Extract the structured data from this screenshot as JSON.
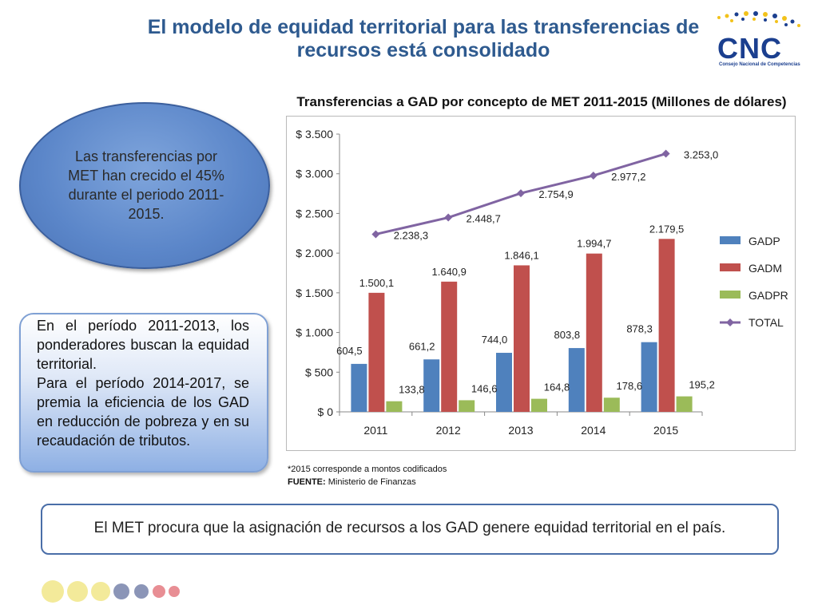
{
  "title": "El modelo de equidad territorial para las transferencias de recursos está consolidado",
  "logo": {
    "text": "CNC",
    "subtitle": "Consejo Nacional de Competencias",
    "colors": [
      "#1b3f8f",
      "#f2c21b"
    ]
  },
  "ellipse_text": "Las transferencias por MET han crecido el 45%  durante el periodo 2011-2015.",
  "box_paragraphs": [
    "En el período 2011-2013, los ponderadores buscan la equidad territorial.",
    "Para el período 2014-2017, se premia la eficiencia de los GAD en reducción de pobreza y en su recaudación de tributos."
  ],
  "note": "*2015 corresponde a montos codificados",
  "source_label": "FUENTE:",
  "source_value": " Ministerio de Finanzas",
  "bottom_text": "El MET procura que la asignación de recursos a los GAD genere equidad territorial en el país.",
  "colors": {
    "title": "#2e5a8f",
    "gadp": "#4f81bd",
    "gadm": "#c0504d",
    "gadpr": "#9bbb59",
    "total": "#8064a2"
  },
  "chart_data": {
    "type": "bar",
    "title": "Transferencias a GAD por concepto de MET 2011-2015 (Millones de dólares)",
    "categories": [
      "2011",
      "2012",
      "2013",
      "2014",
      "2015"
    ],
    "ylim": [
      0,
      3500
    ],
    "yticks": [
      0,
      500,
      1000,
      1500,
      2000,
      2500,
      3000,
      3500
    ],
    "ytick_labels": [
      "$ 0",
      "$ 500",
      "$ 1.000",
      "$ 1.500",
      "$ 2.000",
      "$ 2.500",
      "$ 3.000",
      "$ 3.500"
    ],
    "series": [
      {
        "name": "GADP",
        "kind": "bar",
        "color": "#4f81bd",
        "values": [
          604.5,
          661.2,
          744.0,
          803.8,
          878.3
        ],
        "labels": [
          "604,5",
          "661,2",
          "744,0",
          "803,8",
          "878,3"
        ]
      },
      {
        "name": "GADM",
        "kind": "bar",
        "color": "#c0504d",
        "values": [
          1500.1,
          1640.9,
          1846.1,
          1994.7,
          2179.5
        ],
        "labels": [
          "1.500,1",
          "1.640,9",
          "1.846,1",
          "1.994,7",
          "2.179,5"
        ]
      },
      {
        "name": "GADPR",
        "kind": "bar",
        "color": "#9bbb59",
        "values": [
          133.8,
          146.6,
          164.8,
          178.6,
          195.2
        ],
        "labels": [
          "133,8",
          "146,6",
          "164,8",
          "178,6",
          "195,2"
        ]
      },
      {
        "name": "TOTAL",
        "kind": "line",
        "color": "#8064a2",
        "values": [
          2238.3,
          2448.7,
          2754.9,
          2977.2,
          3253.0
        ],
        "labels": [
          "2.238,3",
          "2.448,7",
          "2.754,9",
          "2.977,2",
          "3.253,0"
        ]
      }
    ],
    "legend_position": "right"
  },
  "decor_dots": [
    {
      "name": "dot-1",
      "color": "#f3ea9a"
    },
    {
      "name": "dot-2",
      "color": "#f3ea9a"
    },
    {
      "name": "dot-3",
      "color": "#f3ea9a"
    },
    {
      "name": "dot-4",
      "color": "#8b95b7"
    },
    {
      "name": "dot-5",
      "color": "#8b95b7"
    },
    {
      "name": "dot-6",
      "color": "#e88e94"
    },
    {
      "name": "dot-7",
      "color": "#e88e94"
    }
  ]
}
